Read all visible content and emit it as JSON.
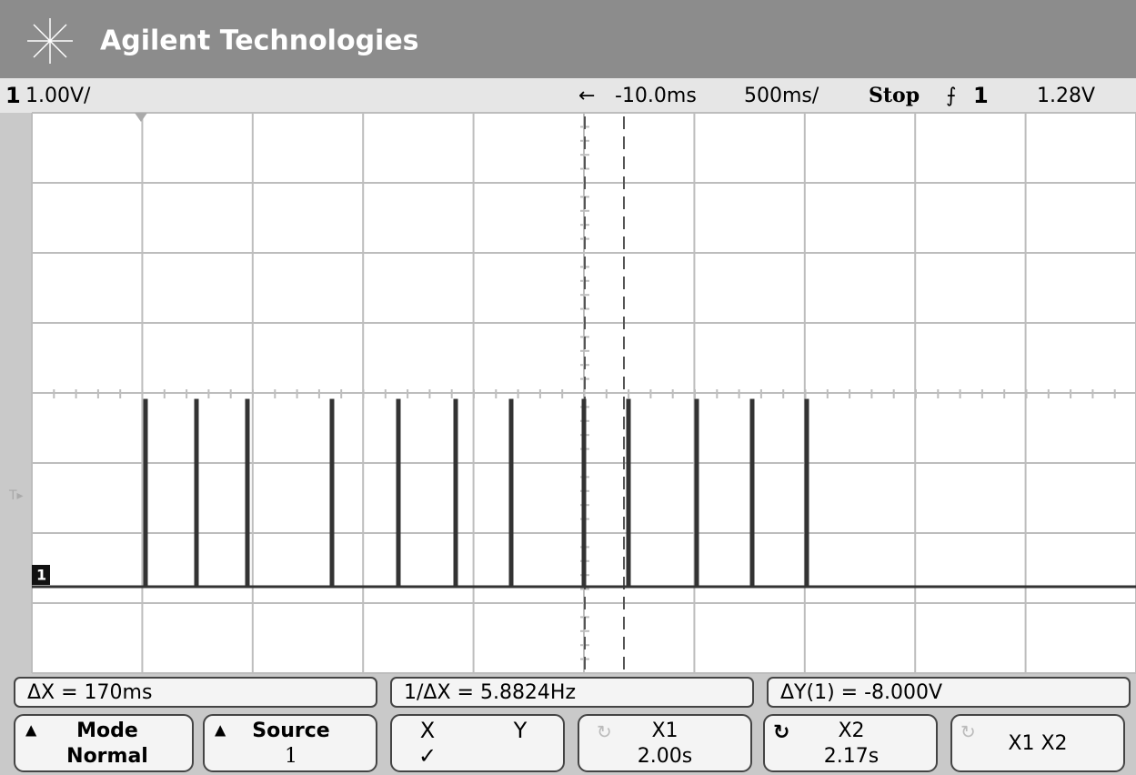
{
  "header": {
    "title": "Agilent Technologies"
  },
  "status": {
    "channel": "1",
    "scale": "1.00V/",
    "arrow": "←",
    "delay": "-10.0ms",
    "timebase": "500ms/",
    "run_state": "Stop",
    "trigger_source": "1",
    "trigger_level": "1.28V"
  },
  "measurements": {
    "delta_x": "ΔX = 170ms",
    "inv_delta_x": "1/ΔX = 5.8824Hz",
    "delta_y": "ΔY(1) = -8.000V"
  },
  "softkeys": {
    "mode": {
      "label": "Mode",
      "value": "Normal"
    },
    "source": {
      "label": "Source",
      "value": "1"
    },
    "xy": {
      "x": "X",
      "y": "Y",
      "check": "✓"
    },
    "x1": {
      "label": "X1",
      "value": "2.00s"
    },
    "x2": {
      "label": "X2",
      "value": "2.17s"
    },
    "x1x2": {
      "label": "X1 X2"
    }
  },
  "ground_marker": "1"
}
